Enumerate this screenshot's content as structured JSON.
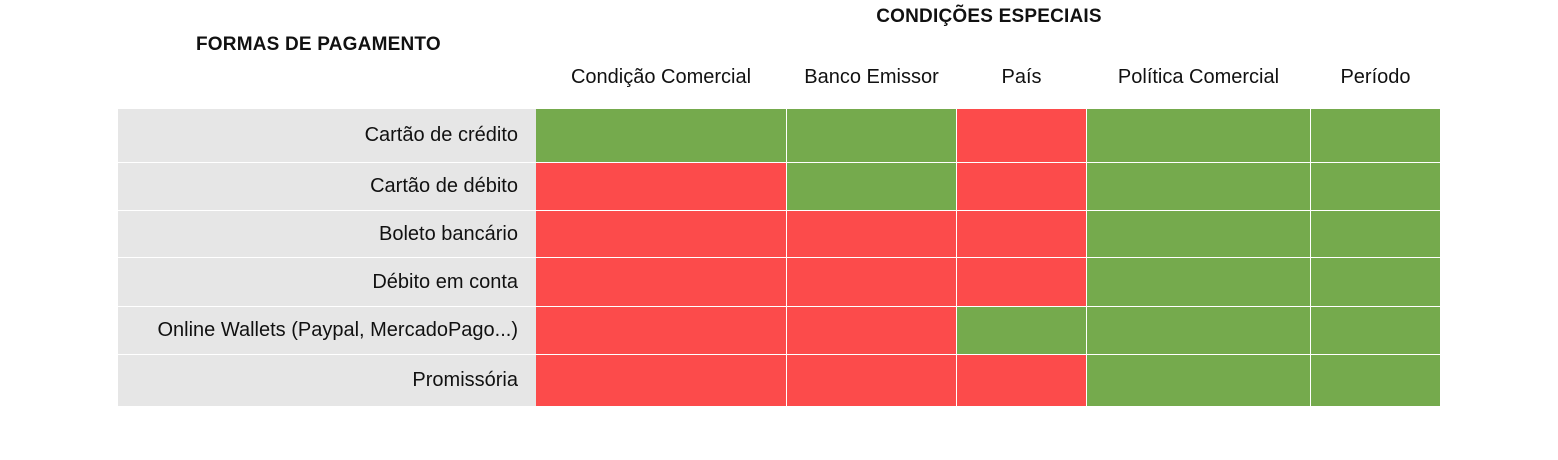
{
  "chart_data": {
    "type": "table",
    "row_header": "FORMAS DE PAGAMENTO",
    "column_group_header": "CONDIÇÕES ESPECIAIS",
    "columns": [
      "Condição Comercial",
      "Banco Emissor",
      "País",
      "Política Comercial",
      "Período"
    ],
    "rows": [
      {
        "label": "Cartão de crédito",
        "values": [
          1,
          1,
          0,
          1,
          1
        ]
      },
      {
        "label": "Cartão de débito",
        "values": [
          0,
          1,
          0,
          1,
          1
        ]
      },
      {
        "label": "Boleto bancário",
        "values": [
          0,
          0,
          0,
          1,
          1
        ]
      },
      {
        "label": "Débito em conta",
        "values": [
          0,
          0,
          0,
          1,
          1
        ]
      },
      {
        "label": "Online Wallets (Paypal, MercadoPago...)",
        "values": [
          0,
          0,
          1,
          1,
          1
        ]
      },
      {
        "label": "Promissória",
        "values": [
          0,
          0,
          0,
          1,
          1
        ]
      }
    ],
    "colors": {
      "1": "#75aa4d",
      "0": "#fc4b4b",
      "label_bg": "#e6e6e6"
    }
  }
}
